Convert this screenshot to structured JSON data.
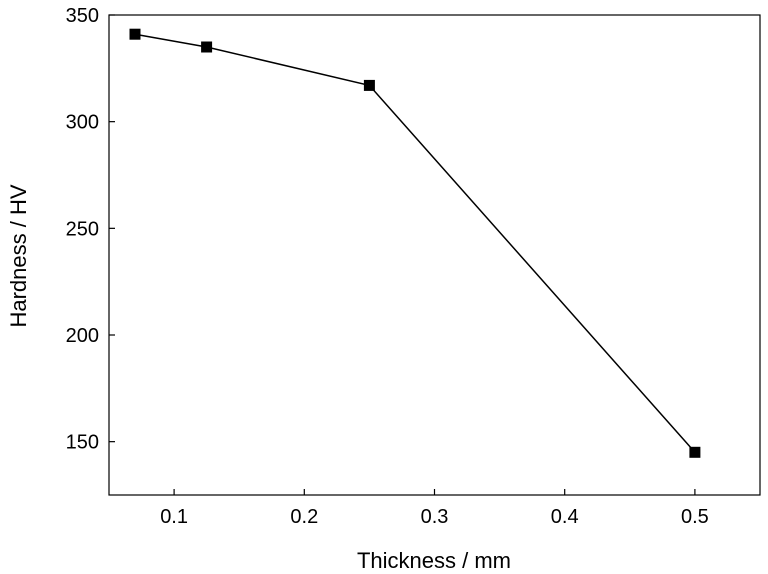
{
  "chart_data": {
    "type": "line",
    "title": "",
    "xlabel": "Thickness / mm",
    "ylabel": "Hardness / HV",
    "xlim": [
      0.05,
      0.55
    ],
    "ylim": [
      125,
      350
    ],
    "x_ticks": [
      0.1,
      0.2,
      0.3,
      0.4,
      0.5
    ],
    "x_tick_labels": [
      "0.1",
      "0.2",
      "0.3",
      "0.4",
      "0.5"
    ],
    "y_ticks": [
      150,
      200,
      250,
      300,
      350
    ],
    "y_tick_labels": [
      "150",
      "200",
      "250",
      "300",
      "350"
    ],
    "grid": false,
    "legend": "none",
    "series": [
      {
        "marker": "square",
        "color": "#000000",
        "points": [
          {
            "x": 0.07,
            "y": 341
          },
          {
            "x": 0.125,
            "y": 335
          },
          {
            "x": 0.25,
            "y": 317
          },
          {
            "x": 0.5,
            "y": 145
          }
        ]
      }
    ]
  }
}
